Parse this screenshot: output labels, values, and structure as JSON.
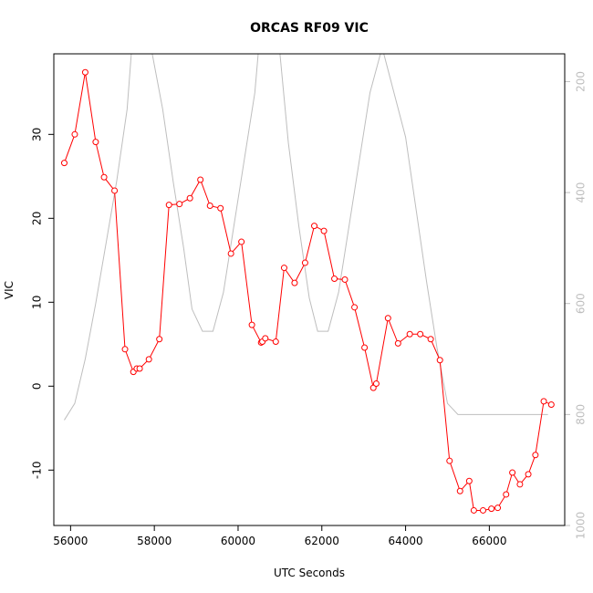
{
  "chart_data": {
    "type": "line",
    "title": "ORCAS RF09 VIC",
    "xlabel": "UTC Seconds",
    "ylabel": "VIC",
    "xlim": [
      55600,
      67800
    ],
    "ylim": [
      -16.6,
      39.6
    ],
    "y2lim": [
      1000,
      150
    ],
    "y2_reversed": true,
    "xticks": [
      56000,
      58000,
      60000,
      62000,
      64000,
      66000
    ],
    "yticks": [
      -10,
      0,
      10,
      20,
      30
    ],
    "y2ticks": [
      200,
      400,
      600,
      800,
      1000
    ],
    "series": [
      {
        "color": "#ff0000",
        "marker": "open-circle",
        "axis": "left",
        "x": [
          55850,
          56100,
          56350,
          56600,
          56800,
          57050,
          57300,
          57500,
          57580,
          57650,
          57870,
          58120,
          58350,
          58600,
          58850,
          59100,
          59330,
          59580,
          59830,
          60080,
          60330,
          60550,
          60580,
          60650,
          60900,
          61100,
          61350,
          61600,
          61820,
          62050,
          62300,
          62550,
          62780,
          63020,
          63230,
          63300,
          63580,
          63820,
          64100,
          64350,
          64600,
          64820,
          65050,
          65300,
          65520,
          65630,
          65850,
          66050,
          66200,
          66400,
          66550,
          66730,
          66930,
          67100,
          67300,
          67480
        ],
        "y": [
          26.6,
          30.0,
          37.4,
          29.1,
          24.9,
          23.3,
          4.4,
          1.7,
          2.1,
          2.1,
          3.2,
          5.6,
          21.6,
          21.7,
          22.4,
          24.6,
          21.5,
          21.2,
          15.8,
          17.2,
          7.3,
          5.2,
          5.3,
          5.7,
          5.3,
          14.1,
          12.3,
          14.7,
          19.1,
          18.5,
          12.8,
          12.7,
          9.4,
          4.6,
          -0.2,
          0.3,
          8.1,
          5.1,
          6.2,
          6.2,
          5.6,
          3.1,
          -8.9,
          -12.5,
          -11.3,
          -14.8,
          -14.8,
          -14.6,
          -14.5,
          -12.9,
          -10.3,
          -11.7,
          -10.5,
          -8.2,
          -1.8,
          -2.2
        ]
      },
      {
        "color": "#bebebe",
        "marker": "none",
        "axis": "right",
        "x": [
          55850,
          56100,
          56350,
          56600,
          56850,
          57100,
          57350,
          57450,
          57950,
          58200,
          58450,
          58700,
          58900,
          59150,
          59400,
          59650,
          59900,
          60150,
          60400,
          60480,
          61000,
          61200,
          61450,
          61700,
          61900,
          62150,
          62400,
          62650,
          62900,
          63150,
          63400,
          63480,
          64000,
          64250,
          64500,
          64750,
          65000,
          65250,
          65500,
          66000,
          67400
        ],
        "y": [
          810,
          780,
          700,
          600,
          490,
          380,
          250,
          150,
          150,
          250,
          380,
          500,
          610,
          650,
          650,
          580,
          460,
          340,
          220,
          150,
          150,
          310,
          460,
          590,
          650,
          650,
          580,
          460,
          340,
          220,
          150,
          150,
          300,
          430,
          560,
          680,
          780,
          800,
          800,
          800,
          800
        ]
      }
    ]
  }
}
